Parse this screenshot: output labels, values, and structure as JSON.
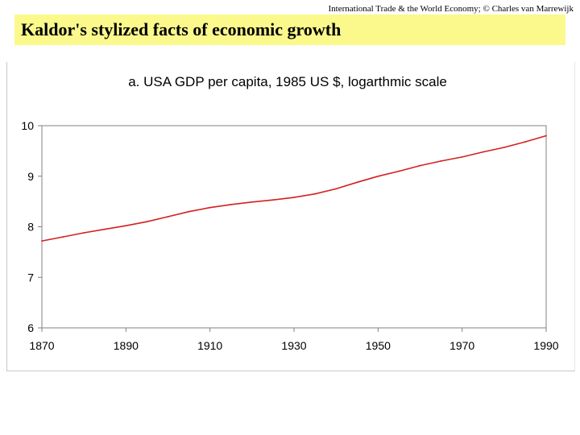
{
  "header": {
    "copyright": "International Trade & the World Economy;  © Charles van Marrewijk",
    "slide_title": "Kaldor's stylized facts of economic growth"
  },
  "colors": {
    "title_band": "#fbf98c",
    "series_line": "#d42020",
    "axis": "#808080"
  },
  "chart_data": {
    "type": "line",
    "title": "a. USA GDP per capita, 1985 US $, logarthmic scale",
    "xlabel": "",
    "ylabel": "",
    "xlim": [
      1870,
      1990
    ],
    "ylim": [
      6,
      10
    ],
    "x_ticks": [
      "1870",
      "1890",
      "1910",
      "1930",
      "1950",
      "1970",
      "1990"
    ],
    "y_ticks": [
      "10",
      "9",
      "8",
      "7",
      "6"
    ],
    "grid": false,
    "series": [
      {
        "name": "USA GDP per capita (log)",
        "x": [
          1870,
          1875,
          1880,
          1885,
          1890,
          1895,
          1900,
          1905,
          1910,
          1915,
          1920,
          1925,
          1930,
          1935,
          1940,
          1945,
          1950,
          1955,
          1960,
          1965,
          1970,
          1975,
          1980,
          1985,
          1990
        ],
        "values": [
          7.72,
          7.8,
          7.88,
          7.95,
          8.02,
          8.1,
          8.2,
          8.3,
          8.38,
          8.44,
          8.49,
          8.53,
          8.58,
          8.65,
          8.75,
          8.88,
          9.0,
          9.1,
          9.21,
          9.3,
          9.38,
          9.48,
          9.57,
          9.68,
          9.8
        ]
      }
    ]
  }
}
